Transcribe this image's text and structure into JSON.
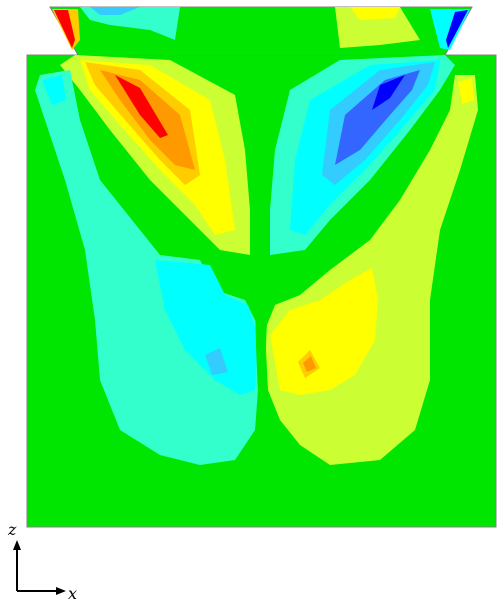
{
  "axes": {
    "vertical_label": "z",
    "horizontal_label": "x"
  },
  "colors": {
    "background": "#00e600",
    "red": "#ff0000",
    "orange": "#ff9900",
    "yellow_orange": "#ffcc00",
    "yellow": "#ffff00",
    "yellow_green": "#ccff33",
    "cyan": "#00ffff",
    "cyan_green": "#33ffcc",
    "light_blue": "#33ccff",
    "blue": "#3366ff",
    "dark_blue": "#0000ff",
    "outline": "#808080"
  }
}
